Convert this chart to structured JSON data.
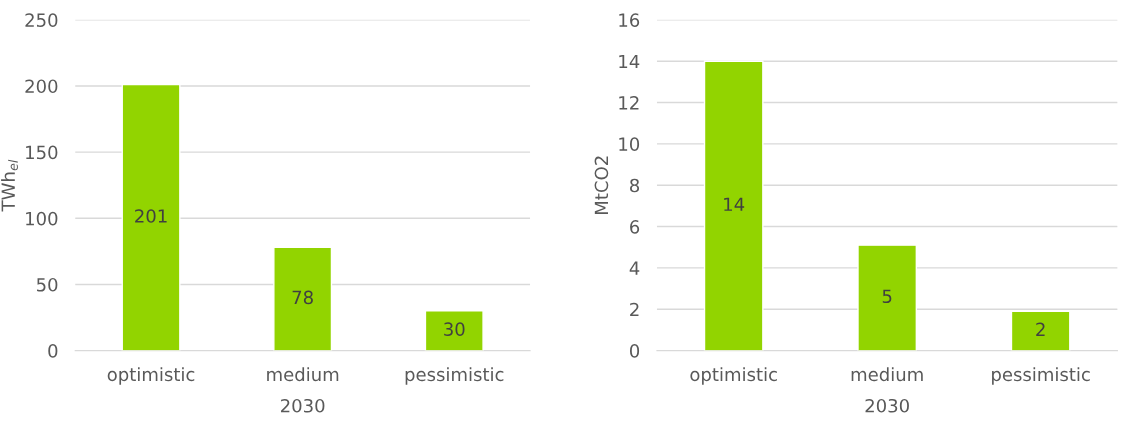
{
  "chart_data": [
    {
      "type": "bar",
      "ylabel": "TWh$_{el}$",
      "xlabel": "2030",
      "categories": [
        "optimistic",
        "medium",
        "pessimistic"
      ],
      "series": [
        {
          "color": "#92d400",
          "values": [
            201,
            78,
            30
          ]
        }
      ],
      "value_labels": [
        "201",
        "78",
        "30"
      ],
      "ylim": [
        0,
        250
      ],
      "yticks": [
        0,
        50,
        100,
        150,
        200,
        250
      ],
      "grid": "y"
    },
    {
      "type": "bar",
      "ylabel": "MtCO2",
      "xlabel": "2030",
      "categories": [
        "optimistic",
        "medium",
        "pessimistic"
      ],
      "series": [
        {
          "color": "#92d400",
          "values": [
            14,
            5.1,
            1.9
          ]
        }
      ],
      "value_labels": [
        "14",
        "5",
        "2"
      ],
      "ylim": [
        0,
        16
      ],
      "yticks": [
        0,
        2,
        4,
        6,
        8,
        10,
        12,
        14,
        16
      ],
      "grid": "y"
    }
  ]
}
